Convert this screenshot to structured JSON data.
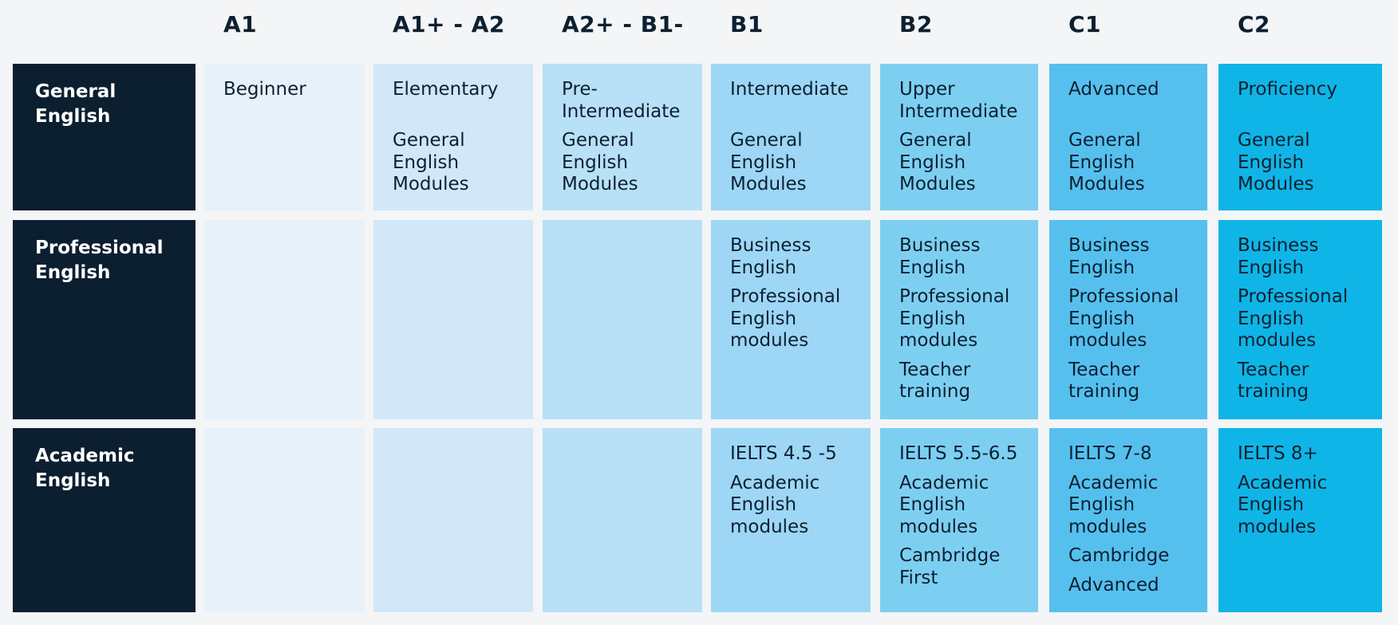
{
  "columns": [
    "A1",
    "A1+ - A2",
    "A2+ - B1-",
    "B1",
    "B2",
    "C1",
    "C2"
  ],
  "column_colors": [
    "#e7f1fa",
    "#d2e8f8",
    "#b8e0f7",
    "#9dd7f5",
    "#7dcff1",
    "#55c0ee",
    "#0fb5e6"
  ],
  "rows": [
    {
      "label": "General\nEnglish"
    },
    {
      "label": "Professional\nEnglish"
    },
    {
      "label": "Academic\nEnglish"
    }
  ],
  "cells": {
    "general": [
      [
        "Beginner"
      ],
      [
        "Elementary",
        "\nGeneral\nEnglish\nModules"
      ],
      [
        "Pre-\nIntermediate",
        "General\nEnglish\nModules"
      ],
      [
        "Intermediate",
        "\nGeneral\nEnglish\nModules"
      ],
      [
        "Upper\nIntermediate",
        "General\nEnglish\nModules"
      ],
      [
        "Advanced",
        "\nGeneral\nEnglish\nModules"
      ],
      [
        "Proficiency",
        "\nGeneral\nEnglish\nModules"
      ]
    ],
    "professional": [
      [],
      [],
      [],
      [
        "Business\nEnglish",
        "Professional\nEnglish\nmodules"
      ],
      [
        "Business\nEnglish",
        "Professional\nEnglish\nmodules",
        "Teacher\ntraining"
      ],
      [
        "Business\nEnglish",
        "Professional\nEnglish\nmodules",
        "Teacher\ntraining"
      ],
      [
        "Business\nEnglish",
        "Professional\nEnglish\nmodules",
        "Teacher\ntraining"
      ]
    ],
    "academic": [
      [],
      [],
      [],
      [
        "IELTS 4.5 -5",
        "Academic\nEnglish\nmodules"
      ],
      [
        "IELTS 5.5-6.5",
        "Academic\nEnglish\nmodules",
        "Cambridge\nFirst"
      ],
      [
        "IELTS 7-8",
        "Academic\nEnglish\nmodules",
        "Cambridge",
        "Advanced"
      ],
      [
        "IELTS 8+",
        "Academic\nEnglish\nmodules"
      ]
    ]
  }
}
